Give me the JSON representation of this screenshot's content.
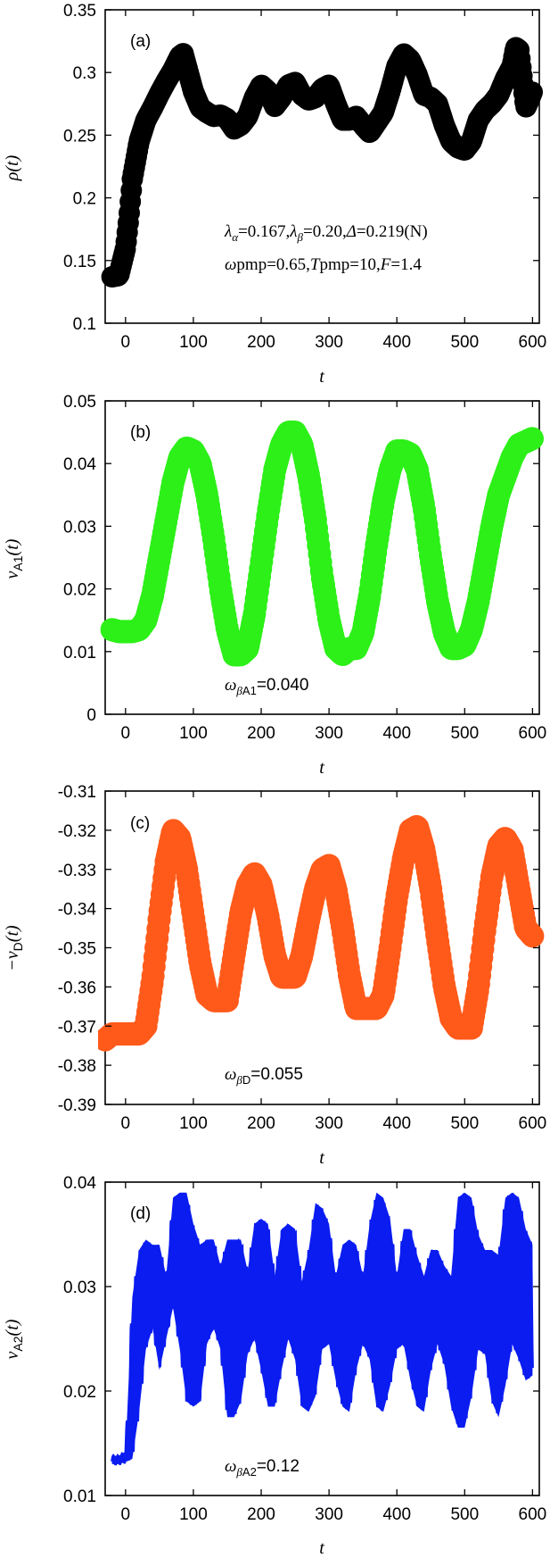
{
  "chart_data": [
    {
      "type": "scatter",
      "panel_label": "(a)",
      "ylabel": "ρ(t)",
      "xlabel": "t",
      "xlim": [
        -30,
        610
      ],
      "ylim": [
        0.1,
        0.35
      ],
      "xticks": [
        0,
        100,
        200,
        300,
        400,
        500,
        600
      ],
      "yticks": [
        "0.1",
        "0.15",
        "0.2",
        "0.25",
        "0.3",
        "0.35"
      ],
      "color": "#000000",
      "marker_size": 12,
      "annotations": [
        "λα=0.167,λβ=0.20,Δ=0.219(N)",
        "ωpmp=0.65,Tpmp=10,F=1.4"
      ],
      "series": [
        {
          "x": [
            -20,
            -10,
            0,
            5,
            10,
            20,
            30,
            40,
            50,
            60,
            70,
            80,
            85,
            90,
            100,
            110,
            120,
            130,
            140,
            150,
            160,
            170,
            180,
            190,
            200,
            210,
            220,
            230,
            240,
            250,
            260,
            270,
            280,
            290,
            300,
            310,
            320,
            330,
            340,
            350,
            360,
            370,
            380,
            390,
            400,
            410,
            420,
            430,
            440,
            450,
            460,
            470,
            480,
            490,
            500,
            510,
            520,
            530,
            540,
            550,
            560,
            570,
            575,
            580,
            585,
            590,
            595,
            600
          ],
          "y": [
            0.137,
            0.138,
            0.16,
            0.185,
            0.215,
            0.245,
            0.262,
            0.272,
            0.283,
            0.293,
            0.302,
            0.313,
            0.315,
            0.305,
            0.285,
            0.272,
            0.268,
            0.265,
            0.266,
            0.263,
            0.255,
            0.258,
            0.265,
            0.28,
            0.29,
            0.285,
            0.273,
            0.28,
            0.29,
            0.292,
            0.282,
            0.278,
            0.28,
            0.287,
            0.29,
            0.275,
            0.262,
            0.262,
            0.265,
            0.258,
            0.252,
            0.26,
            0.268,
            0.285,
            0.305,
            0.315,
            0.31,
            0.298,
            0.282,
            0.28,
            0.275,
            0.258,
            0.245,
            0.24,
            0.238,
            0.245,
            0.262,
            0.27,
            0.275,
            0.282,
            0.295,
            0.305,
            0.32,
            0.318,
            0.295,
            0.272,
            0.278,
            0.285
          ]
        }
      ]
    },
    {
      "type": "scatter",
      "panel_label": "(b)",
      "ylabel": "νA1(t)",
      "xlabel": "t",
      "xlim": [
        -30,
        610
      ],
      "ylim": [
        0,
        0.05
      ],
      "xticks": [
        0,
        100,
        200,
        300,
        400,
        500,
        600
      ],
      "yticks": [
        "0",
        "0.01",
        "0.02",
        "0.03",
        "0.04",
        "0.05"
      ],
      "color": "#2cf018",
      "marker_size": 13,
      "annotations": [
        "ωβA1=0.040"
      ],
      "series": [
        {
          "x": [
            -20,
            -10,
            0,
            10,
            20,
            30,
            40,
            50,
            60,
            70,
            80,
            90,
            100,
            110,
            120,
            130,
            140,
            150,
            160,
            170,
            180,
            190,
            200,
            210,
            220,
            230,
            240,
            250,
            260,
            270,
            280,
            290,
            300,
            310,
            320,
            330,
            340,
            350,
            360,
            370,
            380,
            390,
            400,
            410,
            420,
            430,
            440,
            450,
            460,
            470,
            480,
            490,
            500,
            510,
            520,
            530,
            540,
            550,
            560,
            570,
            580,
            590,
            600
          ],
          "y": [
            0.0135,
            0.0132,
            0.0132,
            0.0132,
            0.0135,
            0.015,
            0.019,
            0.025,
            0.031,
            0.037,
            0.041,
            0.0425,
            0.042,
            0.04,
            0.035,
            0.028,
            0.02,
            0.0135,
            0.0095,
            0.0095,
            0.0105,
            0.016,
            0.024,
            0.032,
            0.039,
            0.043,
            0.045,
            0.045,
            0.043,
            0.038,
            0.031,
            0.022,
            0.015,
            0.0105,
            0.0095,
            0.0105,
            0.0105,
            0.013,
            0.019,
            0.027,
            0.034,
            0.039,
            0.042,
            0.042,
            0.0415,
            0.039,
            0.033,
            0.025,
            0.018,
            0.013,
            0.0105,
            0.0105,
            0.011,
            0.0135,
            0.018,
            0.024,
            0.03,
            0.035,
            0.038,
            0.041,
            0.043,
            0.0435,
            0.044
          ]
        }
      ]
    },
    {
      "type": "scatter",
      "panel_label": "(c)",
      "ylabel": "−νD(t)",
      "xlabel": "t",
      "xlim": [
        -30,
        610
      ],
      "ylim": [
        -0.39,
        -0.31
      ],
      "xticks": [
        0,
        100,
        200,
        300,
        400,
        500,
        600
      ],
      "yticks": [
        "-0.39",
        "-0.38",
        "-0.37",
        "-0.36",
        "-0.35",
        "-0.34",
        "-0.33",
        "-0.32",
        "-0.31"
      ],
      "color": "#ff5a1a",
      "marker_size": 13,
      "annotations": [
        "ωβD=0.055"
      ],
      "series": [
        {
          "x": [
            -30,
            -20,
            -10,
            0,
            10,
            20,
            30,
            40,
            50,
            60,
            70,
            80,
            90,
            100,
            110,
            120,
            130,
            140,
            150,
            160,
            170,
            180,
            190,
            200,
            210,
            220,
            230,
            240,
            250,
            260,
            270,
            280,
            290,
            300,
            310,
            320,
            330,
            340,
            350,
            360,
            370,
            380,
            390,
            400,
            410,
            420,
            430,
            440,
            450,
            460,
            470,
            480,
            490,
            500,
            510,
            520,
            530,
            540,
            550,
            560,
            570,
            580,
            590,
            600
          ],
          "y": [
            -0.3735,
            -0.372,
            -0.372,
            -0.372,
            -0.372,
            -0.372,
            -0.37,
            -0.358,
            -0.342,
            -0.328,
            -0.32,
            -0.322,
            -0.33,
            -0.342,
            -0.354,
            -0.362,
            -0.3635,
            -0.3635,
            -0.3635,
            -0.352,
            -0.341,
            -0.334,
            -0.331,
            -0.334,
            -0.342,
            -0.352,
            -0.3575,
            -0.3575,
            -0.3575,
            -0.352,
            -0.343,
            -0.335,
            -0.33,
            -0.329,
            -0.335,
            -0.345,
            -0.357,
            -0.3655,
            -0.3655,
            -0.3655,
            -0.3655,
            -0.362,
            -0.35,
            -0.337,
            -0.327,
            -0.32,
            -0.319,
            -0.325,
            -0.335,
            -0.348,
            -0.36,
            -0.368,
            -0.3705,
            -0.3705,
            -0.3705,
            -0.36,
            -0.345,
            -0.332,
            -0.324,
            -0.322,
            -0.325,
            -0.335,
            -0.345,
            -0.347
          ]
        }
      ]
    },
    {
      "type": "scatter",
      "panel_label": "(d)",
      "ylabel": "νA2(t)",
      "xlabel": "t",
      "xlim": [
        -30,
        610
      ],
      "ylim": [
        0.01,
        0.04
      ],
      "xticks": [
        0,
        100,
        200,
        300,
        400,
        500,
        600
      ],
      "yticks": [
        "0.01",
        "0.02",
        "0.03",
        "0.04"
      ],
      "color": "#0a1cf0",
      "marker_size": 8,
      "annotations": [
        "ωβA2=0.12"
      ],
      "oscillation_period": 52.36,
      "series": [
        {
          "x": [
            -20,
            -10,
            0,
            10,
            20,
            30,
            40,
            50,
            60,
            70,
            80,
            90,
            100,
            110,
            120,
            130,
            140,
            150,
            160,
            170,
            180,
            190,
            200,
            210,
            220,
            230,
            240,
            250,
            260,
            270,
            280,
            290,
            300,
            310,
            320,
            330,
            340,
            350,
            360,
            370,
            380,
            390,
            400,
            410,
            420,
            430,
            440,
            450,
            460,
            470,
            480,
            490,
            500,
            510,
            520,
            530,
            540,
            550,
            560,
            570,
            580,
            590,
            600
          ],
          "y_upper": [
            0.0138,
            0.0138,
            0.0142,
            0.029,
            0.0335,
            0.0345,
            0.034,
            0.034,
            0.031,
            0.0385,
            0.039,
            0.039,
            0.036,
            0.034,
            0.0345,
            0.0345,
            0.032,
            0.0345,
            0.0345,
            0.0345,
            0.0315,
            0.036,
            0.0365,
            0.036,
            0.031,
            0.0355,
            0.036,
            0.0355,
            0.0305,
            0.0335,
            0.038,
            0.0375,
            0.036,
            0.031,
            0.034,
            0.0345,
            0.034,
            0.031,
            0.036,
            0.039,
            0.0385,
            0.0365,
            0.031,
            0.0355,
            0.0355,
            0.033,
            0.031,
            0.0335,
            0.0335,
            0.032,
            0.031,
            0.0385,
            0.039,
            0.0385,
            0.035,
            0.0335,
            0.0335,
            0.033,
            0.0385,
            0.039,
            0.0385,
            0.0355,
            0.034
          ],
          "y_lower": [
            0.013,
            0.013,
            0.0132,
            0.0135,
            0.018,
            0.024,
            0.026,
            0.022,
            0.025,
            0.028,
            0.024,
            0.019,
            0.0185,
            0.019,
            0.0245,
            0.026,
            0.024,
            0.0175,
            0.0175,
            0.019,
            0.0235,
            0.025,
            0.022,
            0.0185,
            0.0185,
            0.022,
            0.025,
            0.023,
            0.0185,
            0.018,
            0.0195,
            0.024,
            0.0245,
            0.021,
            0.0185,
            0.018,
            0.022,
            0.0245,
            0.023,
            0.0185,
            0.018,
            0.0205,
            0.024,
            0.0245,
            0.021,
            0.0185,
            0.018,
            0.022,
            0.0245,
            0.0225,
            0.0185,
            0.0165,
            0.0165,
            0.0195,
            0.024,
            0.0235,
            0.019,
            0.0175,
            0.0205,
            0.0245,
            0.023,
            0.021,
            0.0215
          ]
        }
      ]
    }
  ]
}
